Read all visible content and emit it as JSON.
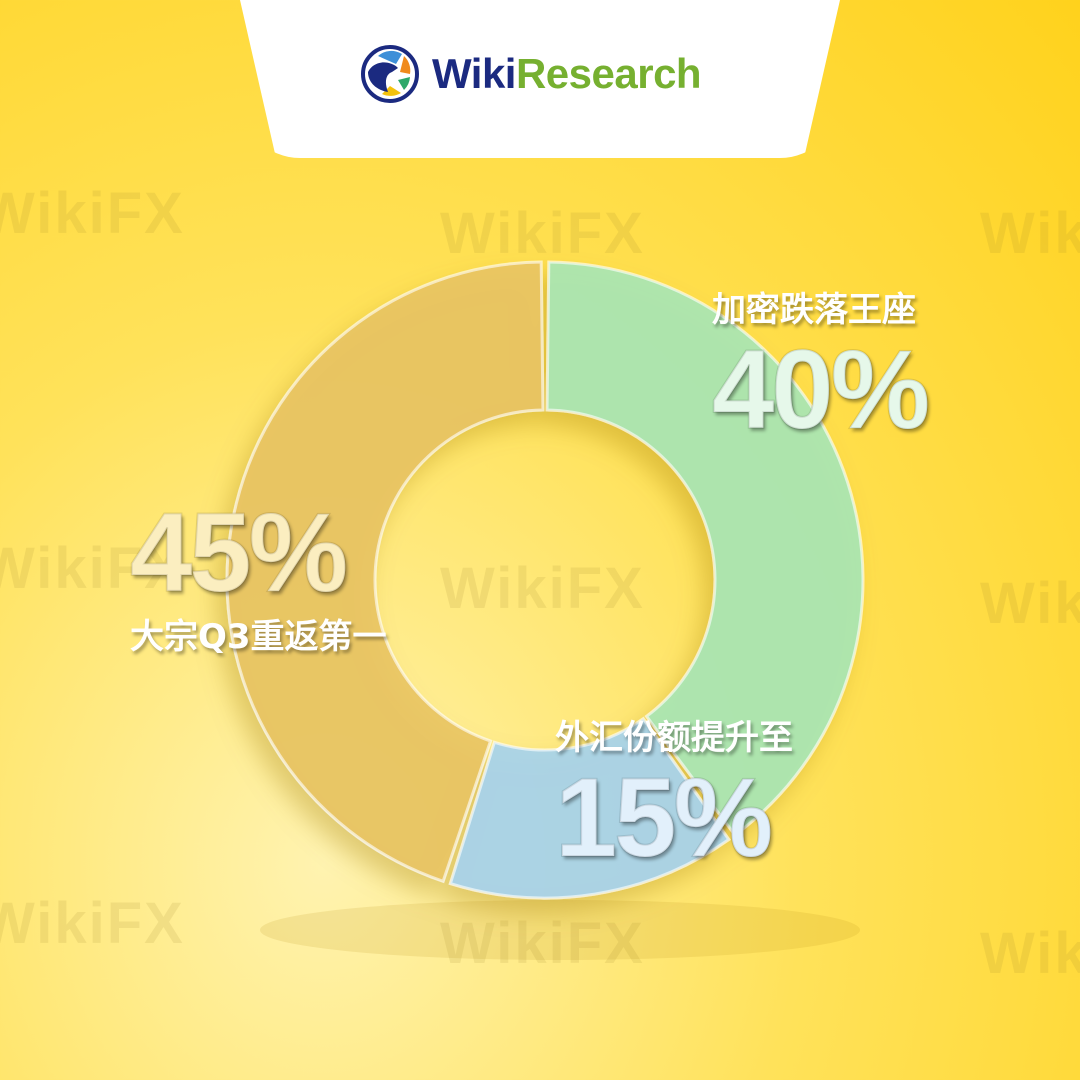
{
  "brand": {
    "name_part1": "Wiki",
    "name_part2": "Research"
  },
  "watermark": "WikiFX",
  "chart_data": {
    "type": "pie",
    "variant": "donut-3d",
    "slices": [
      {
        "label": "加密跌落王座",
        "value": 40,
        "value_label": "40%",
        "color": "#a8e6b4"
      },
      {
        "label": "外汇份额提升至",
        "value": 15,
        "value_label": "15%",
        "color": "#a6d3ec"
      },
      {
        "label": "大宗Q3重返第一",
        "value": 45,
        "value_label": "45%",
        "color": "#e8c463"
      }
    ]
  }
}
